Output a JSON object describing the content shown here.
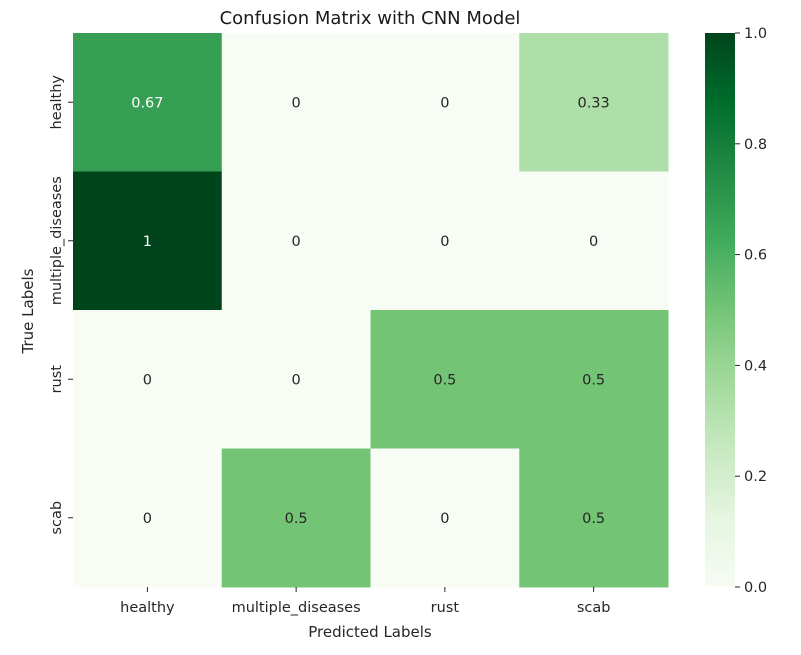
{
  "chart_data": {
    "type": "heatmap",
    "title": "Confusion Matrix with CNN Model",
    "xlabel": "Predicted Labels",
    "ylabel": "True Labels",
    "x_categories": [
      "healthy",
      "multiple_diseases",
      "rust",
      "scab"
    ],
    "y_categories": [
      "healthy",
      "multiple_diseases",
      "rust",
      "scab"
    ],
    "values": [
      [
        0.67,
        0,
        0,
        0.33
      ],
      [
        1,
        0,
        0,
        0
      ],
      [
        0,
        0,
        0.5,
        0.5
      ],
      [
        0,
        0.5,
        0,
        0.5
      ]
    ],
    "value_labels": [
      [
        "0.67",
        "0",
        "0",
        "0.33"
      ],
      [
        "1",
        "0",
        "0",
        "0"
      ],
      [
        "0",
        "0",
        "0.5",
        "0.5"
      ],
      [
        "0",
        "0.5",
        "0",
        "0.5"
      ]
    ],
    "colormap": "Greens",
    "vmin": 0,
    "vmax": 1,
    "colorbar_ticks": [
      0.0,
      0.2,
      0.4,
      0.6,
      0.8,
      1.0
    ],
    "colorbar_tick_labels": [
      "0.0",
      "0.2",
      "0.4",
      "0.6",
      "0.8",
      "1.0"
    ]
  }
}
